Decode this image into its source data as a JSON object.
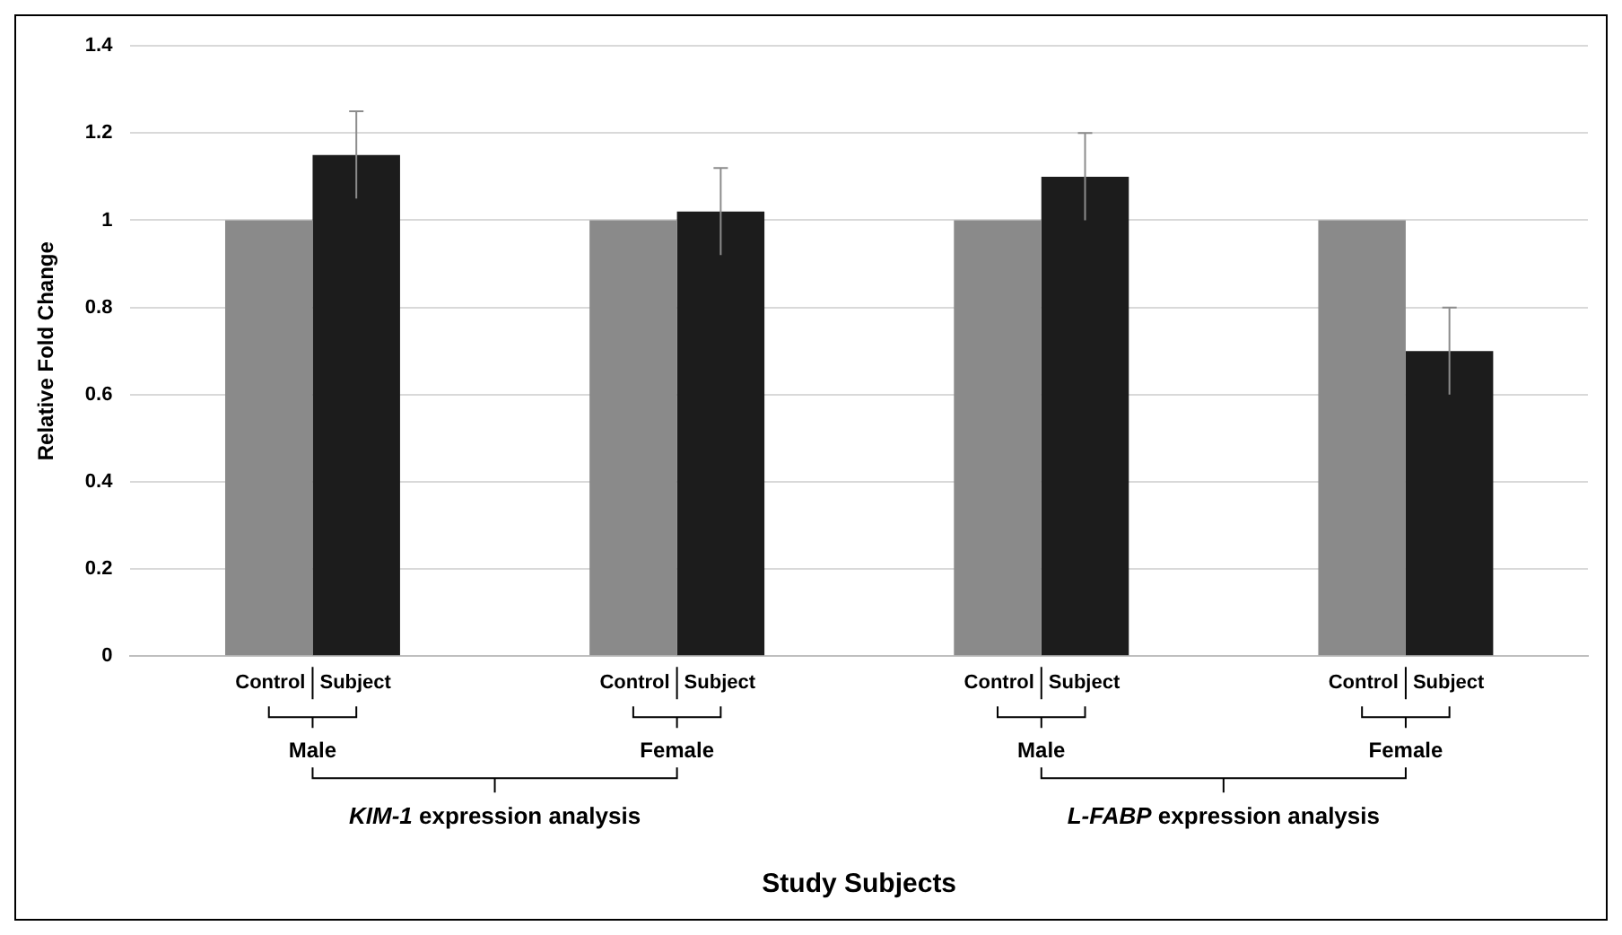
{
  "chart_data": {
    "type": "bar",
    "xlabel": "Study Subjects",
    "ylabel": "Relative Fold Change",
    "categories": [
      "Male",
      "Female",
      "Male",
      "Female"
    ],
    "series": [
      {
        "name": "Control",
        "color": "#8a8a8a",
        "values": [
          1,
          1,
          1,
          1
        ]
      },
      {
        "name": "Subject",
        "color": "#1c1c1c",
        "values": [
          1.15,
          1.02,
          1.1,
          0.7
        ],
        "errors": [
          0.1,
          0.1,
          0.1,
          0.1
        ]
      }
    ],
    "annotations": [
      "KIM-1 expression analysis",
      "L-FABP expression analysis"
    ],
    "ylim": [
      0,
      1.4
    ],
    "yticks": [
      0,
      0.2,
      0.4,
      0.6,
      0.8,
      1,
      1.2,
      1.4
    ],
    "grid": "y",
    "legend": false
  }
}
